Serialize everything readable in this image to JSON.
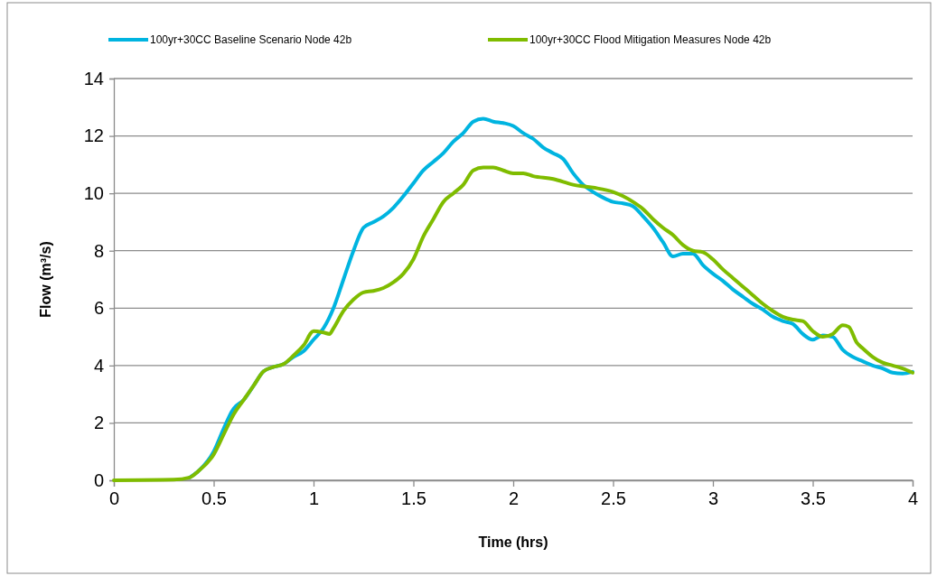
{
  "chart_data": {
    "type": "line",
    "xlabel": "Time (hrs)",
    "ylabel": "Flow (m³/s)",
    "xlim": [
      0,
      4
    ],
    "xticks": [
      0,
      0.5,
      1,
      1.5,
      2,
      2.5,
      3,
      3.5,
      4
    ],
    "ylim": [
      0,
      14
    ],
    "yticks": [
      0,
      2,
      4,
      6,
      8,
      10,
      12,
      14
    ],
    "grid": "y",
    "legend": "top",
    "line_style": "solid",
    "marker": "none",
    "series": [
      {
        "name": "100yr+30CC Baseline Scenario Node 42b",
        "color": "#00b4e0",
        "x": [
          0.38,
          0.42,
          0.5,
          0.55,
          0.6,
          0.65,
          0.7,
          0.75,
          0.8,
          0.85,
          0.9,
          0.95,
          1,
          1.05,
          1.1,
          1.15,
          1.2,
          1.25,
          1.3,
          1.35,
          1.4,
          1.45,
          1.5,
          1.55,
          1.6,
          1.65,
          1.7,
          1.75,
          1.8,
          1.85,
          1.9,
          1.95,
          2,
          2.05,
          2.1,
          2.15,
          2.2,
          2.25,
          2.3,
          2.35,
          2.4,
          2.45,
          2.5,
          2.55,
          2.6,
          2.65,
          2.7,
          2.75,
          2.8,
          2.85,
          2.9,
          2.95,
          3,
          3.05,
          3.1,
          3.15,
          3.2,
          3.25,
          3.3,
          3.35,
          3.4,
          3.45,
          3.5,
          3.55,
          3.6,
          3.65,
          3.7,
          3.75,
          3.8,
          3.85,
          3.9,
          3.95,
          4
        ],
        "values": [
          0.1,
          0.3,
          1,
          1.8,
          2.5,
          2.8,
          3.3,
          3.8,
          3.95,
          4.05,
          4.3,
          4.5,
          4.9,
          5.3,
          6,
          7,
          8,
          8.8,
          9,
          9.2,
          9.5,
          9.9,
          10.35,
          10.8,
          11.1,
          11.4,
          11.8,
          12.1,
          12.5,
          12.6,
          12.5,
          12.45,
          12.35,
          12.1,
          11.9,
          11.6,
          11.4,
          11.2,
          10.7,
          10.3,
          10.05,
          9.85,
          9.7,
          9.65,
          9.55,
          9.2,
          8.8,
          8.3,
          7.8,
          7.9,
          7.9,
          7.5,
          7.2,
          6.95,
          6.65,
          6.4,
          6.15,
          5.95,
          5.7,
          5.55,
          5.45,
          5.1,
          4.9,
          5.05,
          5,
          4.55,
          4.3,
          4.15,
          4,
          3.9,
          3.75,
          3.72,
          3.78
        ]
      },
      {
        "name": "100yr+30CC Flood Mitigation Measures Node 42b",
        "color": "#7fbc00",
        "x": [
          0,
          0.3,
          0.38,
          0.42,
          0.5,
          0.55,
          0.6,
          0.65,
          0.7,
          0.75,
          0.8,
          0.85,
          0.9,
          0.95,
          1,
          1.05,
          1.08,
          1.1,
          1.15,
          1.2,
          1.25,
          1.3,
          1.35,
          1.4,
          1.45,
          1.5,
          1.55,
          1.6,
          1.65,
          1.7,
          1.75,
          1.8,
          1.85,
          1.9,
          1.95,
          2,
          2.05,
          2.1,
          2.2,
          2.3,
          2.4,
          2.5,
          2.55,
          2.6,
          2.65,
          2.7,
          2.75,
          2.8,
          2.85,
          2.9,
          2.95,
          3,
          3.05,
          3.1,
          3.15,
          3.2,
          3.25,
          3.3,
          3.35,
          3.4,
          3.45,
          3.5,
          3.55,
          3.6,
          3.65,
          3.68,
          3.72,
          3.75,
          3.8,
          3.85,
          3.9,
          3.95,
          4
        ],
        "values": [
          0,
          0.02,
          0.1,
          0.3,
          0.9,
          1.6,
          2.3,
          2.8,
          3.3,
          3.8,
          3.95,
          4.05,
          4.35,
          4.7,
          5.2,
          5.15,
          5.1,
          5.3,
          5.9,
          6.3,
          6.55,
          6.6,
          6.7,
          6.9,
          7.2,
          7.7,
          8.5,
          9.1,
          9.7,
          10,
          10.3,
          10.8,
          10.9,
          10.9,
          10.8,
          10.7,
          10.7,
          10.6,
          10.5,
          10.3,
          10.2,
          10.05,
          9.9,
          9.7,
          9.45,
          9.1,
          8.8,
          8.55,
          8.2,
          8,
          7.95,
          7.7,
          7.35,
          7.05,
          6.75,
          6.45,
          6.15,
          5.9,
          5.7,
          5.6,
          5.55,
          5.2,
          5,
          5.1,
          5.4,
          5.35,
          4.8,
          4.6,
          4.3,
          4.1,
          4,
          3.9,
          3.75
        ]
      }
    ]
  }
}
